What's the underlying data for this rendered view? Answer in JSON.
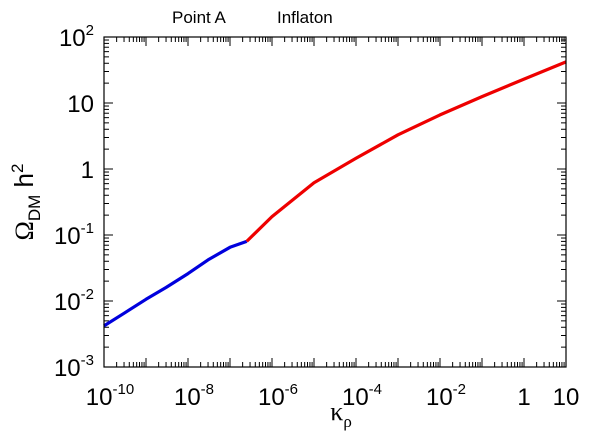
{
  "chart_data": {
    "type": "line",
    "header_labels": [
      "Point A",
      "Inflaton"
    ],
    "xlabel": {
      "base": "κ",
      "sub": "ρ"
    },
    "ylabel": {
      "base": "Ω",
      "sub": "DM",
      "mid": " h",
      "sup": "2"
    },
    "x_scale": "log",
    "y_scale": "log",
    "xlim": [
      1e-10,
      10
    ],
    "ylim": [
      0.001,
      100
    ],
    "grid": false,
    "x_ticks": [
      {
        "value": 1e-10,
        "base": "10",
        "exp": "-10"
      },
      {
        "value": 1e-08,
        "base": "10",
        "exp": "-8"
      },
      {
        "value": 1e-06,
        "base": "10",
        "exp": "-6"
      },
      {
        "value": 0.0001,
        "base": "10",
        "exp": "-4"
      },
      {
        "value": 0.01,
        "base": "10",
        "exp": "-2"
      },
      {
        "value": 1,
        "base": "1",
        "exp": ""
      },
      {
        "value": 10,
        "base": "10",
        "exp": ""
      }
    ],
    "y_ticks": [
      {
        "value": 0.001,
        "base": "10",
        "exp": "-3"
      },
      {
        "value": 0.01,
        "base": "10",
        "exp": "-2"
      },
      {
        "value": 0.1,
        "base": "10",
        "exp": "-1"
      },
      {
        "value": 1,
        "base": "1",
        "exp": ""
      },
      {
        "value": 10,
        "base": "10",
        "exp": ""
      },
      {
        "value": 100,
        "base": "10",
        "exp": "2"
      }
    ],
    "series": [
      {
        "color": "#0000dd",
        "x": [
          1e-10,
          3e-10,
          1e-09,
          3e-09,
          1e-08,
          3e-08,
          1e-07,
          2.5e-07
        ],
        "y": [
          0.0042,
          0.0065,
          0.0106,
          0.016,
          0.026,
          0.042,
          0.065,
          0.08
        ]
      },
      {
        "color": "#ee0000",
        "x": [
          2.5e-07,
          1e-06,
          1e-05,
          0.0001,
          0.001,
          0.01,
          0.1,
          1,
          10
        ],
        "y": [
          0.08,
          0.19,
          0.62,
          1.45,
          3.3,
          6.6,
          12.5,
          23,
          42
        ]
      }
    ]
  }
}
